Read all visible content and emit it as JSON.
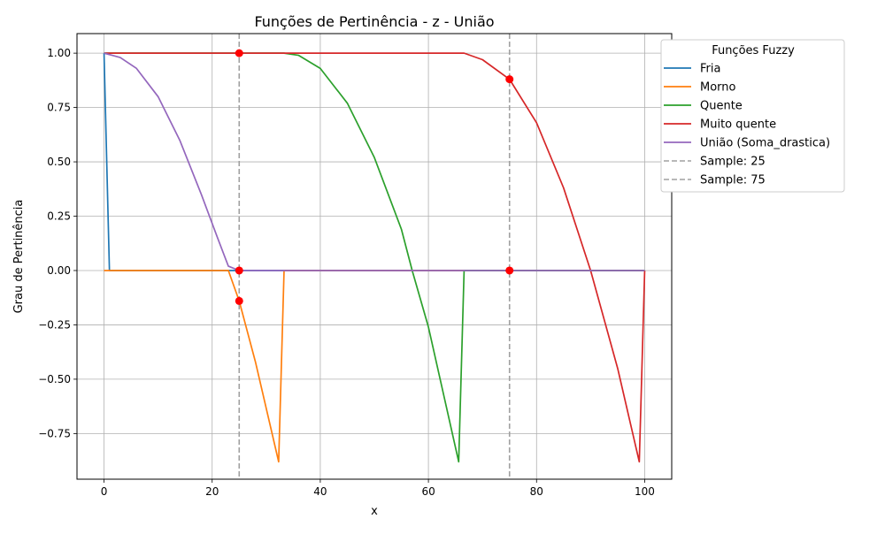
{
  "chart_data": {
    "type": "line",
    "title": "Funções de Pertinência - z - União",
    "xlabel": "x",
    "ylabel": "Grau de Pertinência",
    "xlim": [
      -5,
      105
    ],
    "ylim": [
      -0.96,
      1.09
    ],
    "xticks": [
      0,
      20,
      40,
      60,
      80,
      100
    ],
    "xtick_labels": [
      "0",
      "20",
      "40",
      "60",
      "80",
      "100"
    ],
    "yticks": [
      -0.75,
      -0.5,
      -0.25,
      0.0,
      0.25,
      0.5,
      0.75,
      1.0
    ],
    "ytick_labels": [
      "−0.75",
      "−0.50",
      "−0.25",
      "0.00",
      "0.25",
      "0.50",
      "0.75",
      "1.00"
    ],
    "grid": true,
    "legend_title": "Funções Fuzzy",
    "legend_position": "outside-top-right",
    "series": [
      {
        "name": "Fria",
        "color": "#1f77b4",
        "x": [
          0,
          1,
          100
        ],
        "y": [
          1.0,
          0.0,
          0.0
        ]
      },
      {
        "name": "Morno",
        "color": "#ff7f0e",
        "x": [
          0,
          23,
          25,
          28,
          32.3,
          33.3,
          100
        ],
        "y": [
          0.0,
          0.0,
          -0.14,
          -0.42,
          -0.88,
          0.0,
          0.0
        ]
      },
      {
        "name": "Quente",
        "color": "#2ca02c",
        "x": [
          0,
          33.3,
          36,
          40,
          45,
          50,
          55,
          57,
          60,
          65.6,
          66.6,
          100
        ],
        "y": [
          1.0,
          1.0,
          0.99,
          0.93,
          0.77,
          0.52,
          0.19,
          0.0,
          -0.26,
          -0.88,
          0.0,
          0.0
        ]
      },
      {
        "name": "Muito quente",
        "color": "#d62728",
        "x": [
          0,
          66.6,
          70,
          75,
          80,
          85,
          90,
          95,
          99,
          100
        ],
        "y": [
          1.0,
          1.0,
          0.97,
          0.88,
          0.68,
          0.38,
          0.0,
          -0.45,
          -0.88,
          0.0
        ]
      },
      {
        "name": "União (Soma_drastica)",
        "color": "#9467bd",
        "x": [
          0,
          3,
          6,
          10,
          14,
          18,
          21,
          23,
          25,
          100
        ],
        "y": [
          1.0,
          0.98,
          0.93,
          0.8,
          0.6,
          0.35,
          0.15,
          0.02,
          0.0,
          0.0
        ]
      }
    ],
    "vlines": [
      {
        "name": "Sample: 25",
        "x": 25,
        "color": "#a0a0a0"
      },
      {
        "name": "Sample: 75",
        "x": 75,
        "color": "#a0a0a0"
      }
    ],
    "markers": {
      "color": "#ff0000",
      "points": [
        {
          "x": 25,
          "y": 1.0
        },
        {
          "x": 25,
          "y": 0.0
        },
        {
          "x": 25,
          "y": -0.14
        },
        {
          "x": 75,
          "y": 0.88
        },
        {
          "x": 75,
          "y": 0.0
        }
      ]
    }
  }
}
